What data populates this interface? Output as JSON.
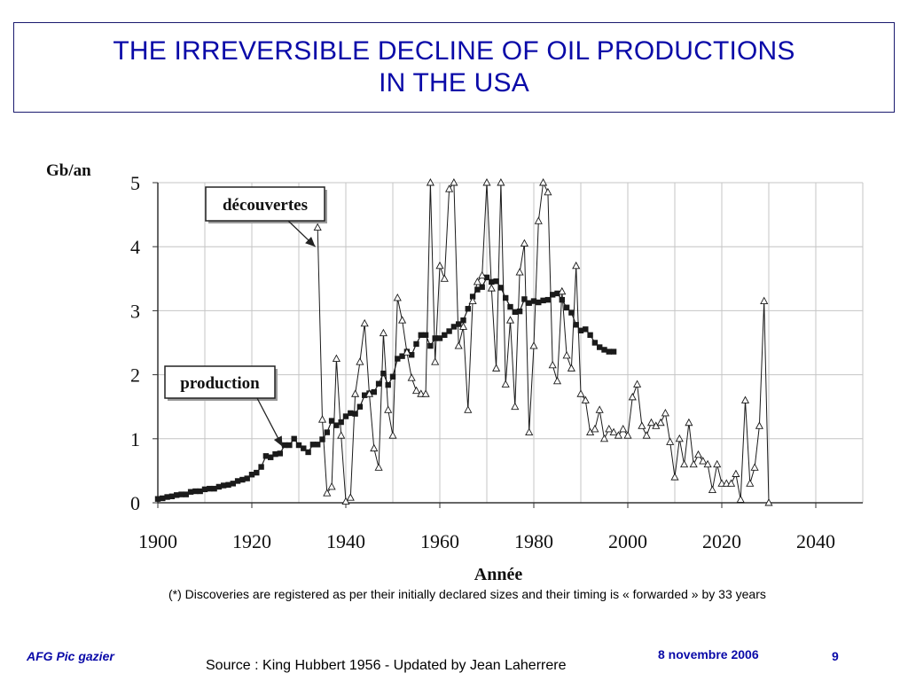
{
  "slide": {
    "title_line1": "THE IRREVERSIBLE DECLINE OF OIL PRODUCTIONS",
    "title_line2": "IN THE USA",
    "note": "(*) Discoveries are registered as per their initially declared sizes and their timing is « forwarded » by 33 years",
    "footer_left": "AFG Pic gazier",
    "footer_source": "Source : King Hubbert 1956 - Updated by Jean Laherrere",
    "footer_date": "8 novembre 2006",
    "page_number": "9",
    "colors": {
      "title": "#0a0aa8",
      "footer": "#0a0aa8",
      "grid": "#c4c4c4",
      "series": "#1a1a1a"
    }
  },
  "chart_data": {
    "type": "line",
    "ylabel": "Gb/an",
    "xlabel": "Année",
    "xlim": [
      1900,
      2050
    ],
    "ylim": [
      0,
      5
    ],
    "x_ticks": [
      1900,
      1920,
      1940,
      1960,
      1980,
      2000,
      2020,
      2040
    ],
    "y_ticks": [
      0,
      1,
      2,
      3,
      4,
      5
    ],
    "grid": true,
    "annotations": [
      {
        "text": "découvertes",
        "points_to": [
          1933.5,
          4.0
        ]
      },
      {
        "text": "production",
        "points_to": [
          1926.5,
          0.88
        ]
      }
    ],
    "series": [
      {
        "name": "production",
        "marker": "square",
        "x": [
          1900,
          1901,
          1902,
          1903,
          1904,
          1905,
          1906,
          1907,
          1908,
          1909,
          1910,
          1911,
          1912,
          1913,
          1914,
          1915,
          1916,
          1917,
          1918,
          1919,
          1920,
          1921,
          1922,
          1923,
          1924,
          1925,
          1926,
          1927,
          1928,
          1929,
          1930,
          1931,
          1932,
          1933,
          1934,
          1935,
          1936,
          1937,
          1938,
          1939,
          1940,
          1941,
          1942,
          1943,
          1944,
          1945,
          1946,
          1947,
          1948,
          1949,
          1950,
          1951,
          1952,
          1953,
          1954,
          1955,
          1956,
          1957,
          1958,
          1959,
          1960,
          1961,
          1962,
          1963,
          1964,
          1965,
          1966,
          1967,
          1968,
          1969,
          1970,
          1971,
          1972,
          1973,
          1974,
          1975,
          1976,
          1977,
          1978,
          1979,
          1980,
          1981,
          1982,
          1983,
          1984,
          1985,
          1986,
          1987,
          1988,
          1989,
          1990,
          1991,
          1992,
          1993,
          1994,
          1995,
          1996,
          1997
        ],
        "values": [
          0.06,
          0.07,
          0.09,
          0.1,
          0.12,
          0.13,
          0.13,
          0.17,
          0.18,
          0.18,
          0.21,
          0.22,
          0.22,
          0.25,
          0.27,
          0.28,
          0.3,
          0.34,
          0.36,
          0.38,
          0.44,
          0.47,
          0.56,
          0.73,
          0.71,
          0.76,
          0.77,
          0.9,
          0.9,
          1.0,
          0.9,
          0.85,
          0.79,
          0.91,
          0.91,
          0.99,
          1.1,
          1.28,
          1.21,
          1.26,
          1.35,
          1.4,
          1.39,
          1.5,
          1.68,
          1.71,
          1.73,
          1.86,
          2.02,
          1.84,
          1.97,
          2.25,
          2.29,
          2.36,
          2.31,
          2.48,
          2.62,
          2.62,
          2.45,
          2.57,
          2.57,
          2.62,
          2.68,
          2.75,
          2.79,
          2.85,
          3.03,
          3.22,
          3.33,
          3.37,
          3.52,
          3.45,
          3.46,
          3.36,
          3.2,
          3.06,
          2.98,
          2.99,
          3.18,
          3.12,
          3.15,
          3.13,
          3.16,
          3.17,
          3.25,
          3.27,
          3.17,
          3.05,
          2.97,
          2.78,
          2.69,
          2.71,
          2.62,
          2.5,
          2.43,
          2.39,
          2.36,
          2.36
        ]
      },
      {
        "name": "découvertes",
        "marker": "triangle",
        "x": [
          1934,
          1935,
          1936,
          1937,
          1938,
          1939,
          1940,
          1941,
          1942,
          1943,
          1944,
          1945,
          1946,
          1947,
          1948,
          1949,
          1950,
          1951,
          1952,
          1953,
          1954,
          1955,
          1956,
          1957,
          1958,
          1959,
          1960,
          1961,
          1962,
          1963,
          1964,
          1965,
          1966,
          1967,
          1968,
          1969,
          1970,
          1971,
          1972,
          1973,
          1974,
          1975,
          1976,
          1977,
          1978,
          1979,
          1980,
          1981,
          1982,
          1983,
          1984,
          1985,
          1986,
          1987,
          1988,
          1989,
          1990,
          1991,
          1992,
          1993,
          1994,
          1995,
          1996,
          1997,
          1998,
          1999,
          2000,
          2001,
          2002,
          2003,
          2004,
          2005,
          2006,
          2007,
          2008,
          2009,
          2010,
          2011,
          2012,
          2013,
          2014,
          2015,
          2016,
          2017,
          2018,
          2019,
          2020,
          2021,
          2022,
          2023,
          2024,
          2025,
          2026,
          2027,
          2028,
          2029,
          2030
        ],
        "values": [
          4.3,
          1.3,
          0.15,
          0.25,
          2.25,
          1.05,
          0.02,
          0.08,
          1.7,
          2.2,
          2.8,
          1.7,
          0.85,
          0.55,
          2.65,
          1.45,
          1.05,
          3.2,
          2.85,
          2.35,
          1.95,
          1.75,
          1.7,
          1.7,
          5.0,
          2.2,
          3.7,
          3.5,
          4.9,
          5.1,
          2.45,
          2.75,
          1.45,
          3.15,
          3.45,
          3.55,
          5.1,
          3.35,
          2.1,
          5.1,
          1.85,
          2.85,
          1.5,
          3.6,
          4.05,
          1.1,
          2.45,
          4.4,
          5.0,
          4.85,
          2.15,
          1.9,
          3.3,
          2.3,
          2.1,
          3.7,
          1.7,
          1.6,
          1.1,
          1.15,
          1.45,
          1.0,
          1.15,
          1.1,
          1.05,
          1.15,
          1.05,
          1.65,
          1.85,
          1.2,
          1.05,
          1.25,
          1.2,
          1.25,
          1.4,
          0.95,
          0.4,
          1.0,
          0.6,
          1.25,
          0.6,
          0.75,
          0.65,
          0.6,
          0.2,
          0.6,
          0.3,
          0.3,
          0.3,
          0.45,
          0.05,
          1.6,
          0.3,
          0.55,
          1.2,
          3.15,
          0.0
        ]
      }
    ]
  }
}
